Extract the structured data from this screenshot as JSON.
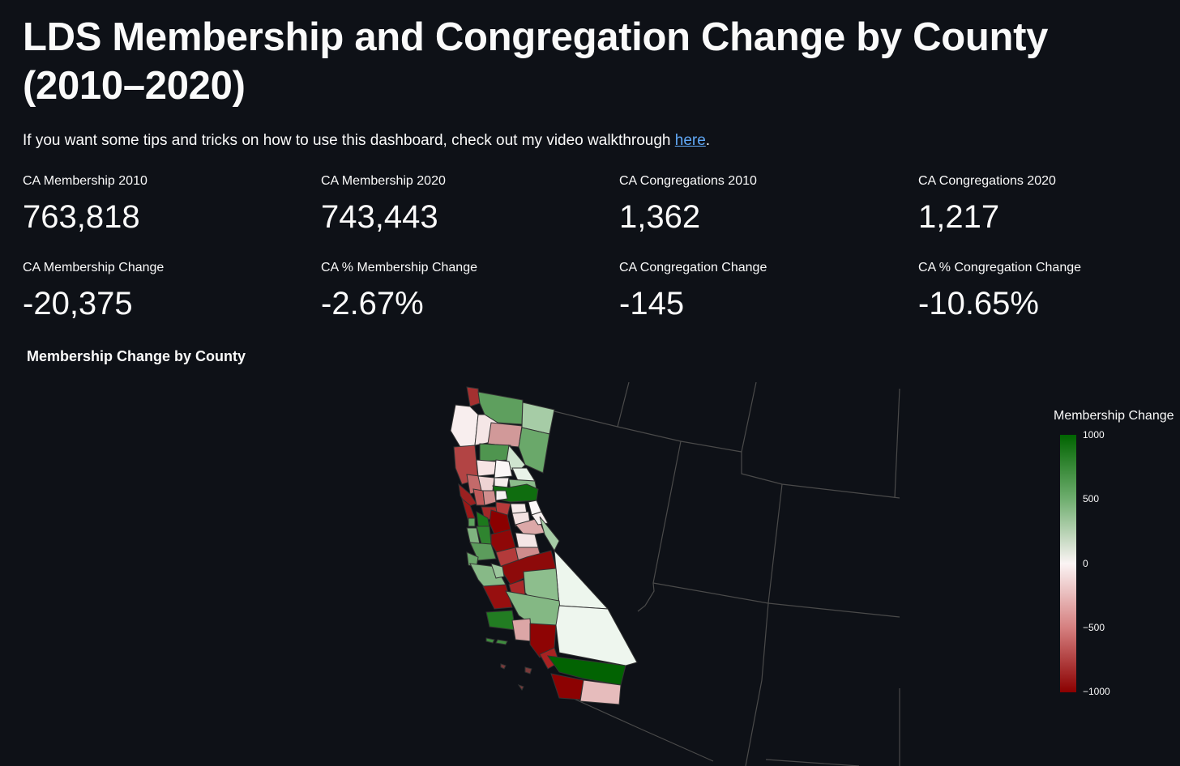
{
  "title": "LDS Membership and Congregation Change by County (2010–2020)",
  "intro": {
    "text": "If you want some tips and tricks on how to use this dashboard, check out my video walkthrough ",
    "link": "here",
    "suffix": "."
  },
  "metrics": [
    {
      "label": "CA Membership 2010",
      "value": "763,818"
    },
    {
      "label": "CA Membership 2020",
      "value": "743,443"
    },
    {
      "label": "CA Congregations 2010",
      "value": "1,362"
    },
    {
      "label": "CA Congregations 2020",
      "value": "1,217"
    },
    {
      "label": "CA Membership Change",
      "value": "-20,375"
    },
    {
      "label": "CA % Membership Change",
      "value": "-2.67%"
    },
    {
      "label": "CA Congregation Change",
      "value": "-145"
    },
    {
      "label": "CA % Congregation Change",
      "value": "-10.65%"
    }
  ],
  "map": {
    "title": "Membership Change by County",
    "legend": {
      "title": "Membership Change",
      "ticks": [
        "1000",
        "500",
        "0",
        "−500",
        "−1000"
      ],
      "colors": [
        "#006400",
        "#6fae6f",
        "#fbf4f4",
        "#d57f7f",
        "#8b0000"
      ]
    }
  }
}
